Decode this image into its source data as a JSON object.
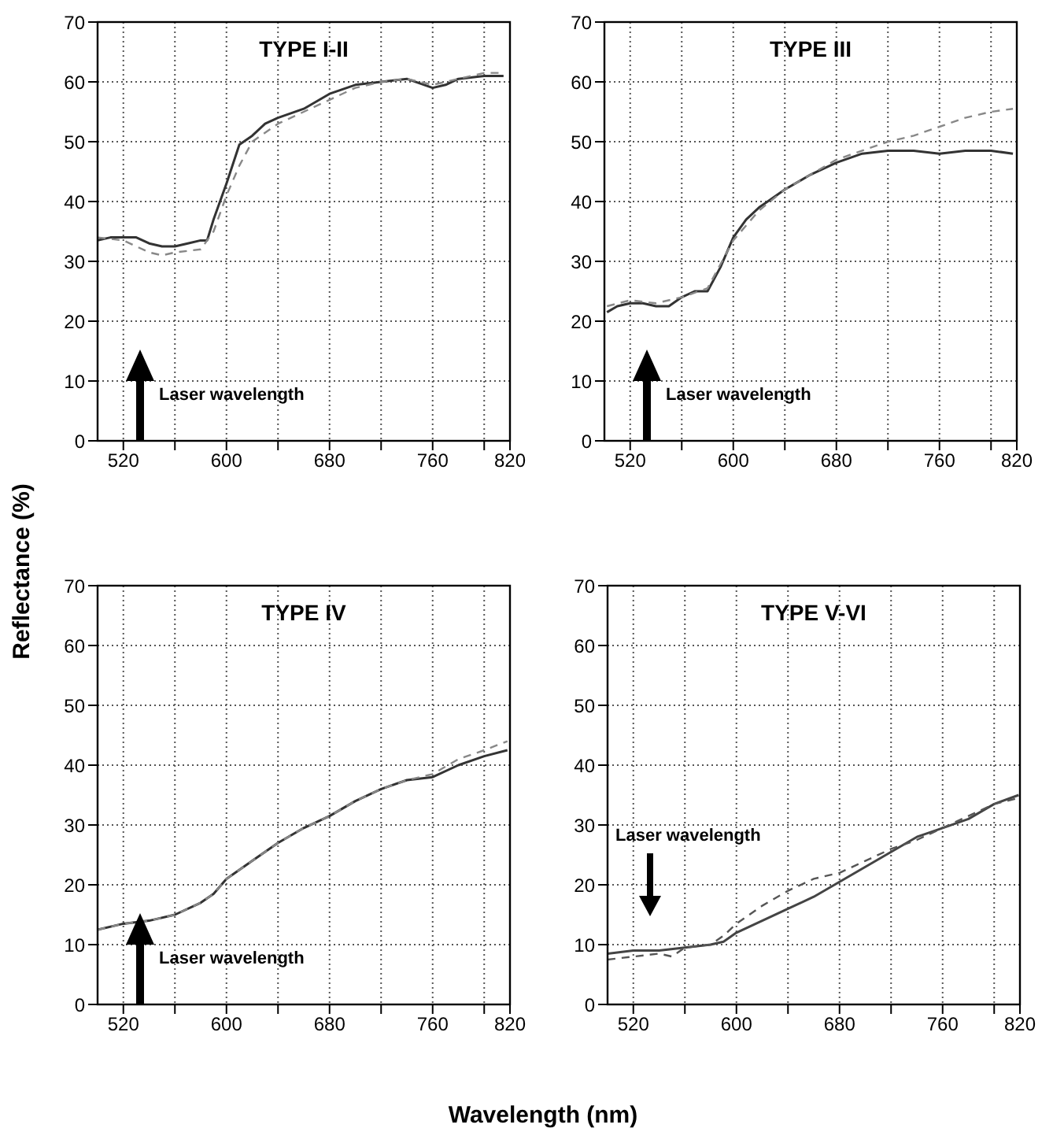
{
  "chart_data": [
    {
      "type": "line",
      "title": "TYPE I-II",
      "ylabel": "Reflectance (%)",
      "xlim": [
        500,
        820
      ],
      "ylim": [
        0,
        70
      ],
      "xticks": [
        520,
        {
          "value": 560,
          "label": null
        },
        600,
        {
          "value": 640,
          "label": null
        },
        680,
        {
          "value": 720,
          "label": null
        },
        760,
        {
          "value": 800,
          "label": null
        },
        820
      ],
      "yticks": [
        0,
        10,
        20,
        30,
        40,
        50,
        60,
        70
      ],
      "grid": true,
      "annotations": [
        "Laser wavelength"
      ],
      "series": [
        {
          "color": "#333333",
          "line_style": "solid",
          "x": [
            500,
            510,
            520,
            530,
            540,
            550,
            560,
            570,
            580,
            585,
            590,
            600,
            610,
            620,
            630,
            640,
            660,
            680,
            700,
            720,
            740,
            760,
            770,
            780,
            800,
            815
          ],
          "values": [
            33.5,
            34,
            34,
            34,
            33,
            32.5,
            32.5,
            33,
            33.5,
            33.5,
            37,
            43,
            49.5,
            51,
            53,
            54,
            55.5,
            58,
            59.5,
            60,
            60.5,
            59,
            59.5,
            60.5,
            61,
            61
          ]
        },
        {
          "color": "#888888",
          "line_style": "dashed",
          "x": [
            500,
            520,
            540,
            550,
            560,
            580,
            590,
            600,
            610,
            620,
            640,
            660,
            680,
            700,
            720,
            740,
            760,
            780,
            800,
            815
          ],
          "values": [
            34,
            33.5,
            31.5,
            31,
            31.5,
            32,
            35,
            41,
            46,
            50,
            53,
            55,
            57,
            59,
            60,
            60.5,
            59.5,
            60.5,
            61.5,
            61.5
          ]
        }
      ]
    },
    {
      "type": "line",
      "title": "TYPE III",
      "xlim": [
        500,
        820
      ],
      "ylim": [
        0,
        70
      ],
      "xticks": [
        520,
        {
          "value": 560,
          "label": null
        },
        600,
        {
          "value": 640,
          "label": null
        },
        680,
        {
          "value": 720,
          "label": null
        },
        760,
        {
          "value": 800,
          "label": null
        },
        820
      ],
      "yticks": [
        0,
        10,
        20,
        30,
        40,
        50,
        60,
        70
      ],
      "grid": true,
      "annotations": [
        "Laser wavelength"
      ],
      "series": [
        {
          "color": "#333333",
          "line_style": "solid",
          "x": [
            502,
            510,
            520,
            530,
            540,
            550,
            560,
            570,
            580,
            590,
            600,
            610,
            620,
            640,
            660,
            680,
            700,
            720,
            740,
            760,
            780,
            800,
            817
          ],
          "values": [
            21.5,
            22.5,
            23,
            23,
            22.5,
            22.5,
            24,
            25,
            25,
            29,
            34,
            37,
            39,
            42,
            44.5,
            46.5,
            48,
            48.5,
            48.5,
            48,
            48.5,
            48.5,
            48
          ]
        },
        {
          "color": "#888888",
          "line_style": "dashed",
          "x": [
            502,
            520,
            540,
            560,
            580,
            600,
            620,
            640,
            660,
            680,
            700,
            720,
            740,
            760,
            780,
            800,
            817
          ],
          "values": [
            22.5,
            23.5,
            23,
            24,
            25.5,
            33.5,
            38.5,
            42,
            44.5,
            47,
            48.5,
            50,
            51,
            52.5,
            54,
            55,
            55.5
          ]
        }
      ]
    },
    {
      "type": "line",
      "title": "TYPE IV",
      "xlim": [
        500,
        820
      ],
      "ylim": [
        0,
        70
      ],
      "xticks": [
        520,
        {
          "value": 560,
          "label": null
        },
        600,
        {
          "value": 640,
          "label": null
        },
        680,
        {
          "value": 720,
          "label": null
        },
        760,
        {
          "value": 800,
          "label": null
        },
        820
      ],
      "yticks": [
        0,
        10,
        20,
        30,
        40,
        50,
        60,
        70
      ],
      "grid": true,
      "annotations": [
        "Laser wavelength"
      ],
      "series": [
        {
          "color": "#333333",
          "line_style": "solid",
          "x": [
            500,
            520,
            540,
            560,
            580,
            590,
            600,
            610,
            620,
            640,
            660,
            680,
            700,
            720,
            740,
            760,
            780,
            800,
            818
          ],
          "values": [
            12.5,
            13.5,
            14,
            15,
            17,
            18.5,
            21,
            22.5,
            24,
            27,
            29.5,
            31.5,
            34,
            36,
            37.5,
            38,
            40,
            41.5,
            42.5
          ]
        },
        {
          "color": "#888888",
          "line_style": "dashed",
          "x": [
            500,
            520,
            540,
            560,
            580,
            590,
            600,
            610,
            620,
            640,
            660,
            680,
            700,
            720,
            740,
            760,
            780,
            800,
            818
          ],
          "values": [
            12.5,
            13.5,
            14,
            15,
            17,
            18.5,
            21,
            22.5,
            24,
            27,
            29.5,
            31.5,
            34,
            36,
            37.5,
            38.5,
            41,
            42.5,
            44
          ]
        }
      ]
    },
    {
      "type": "line",
      "title": "TYPE V-VI",
      "xlabel": "Wavelength (nm)",
      "xlim": [
        500,
        820
      ],
      "ylim": [
        0,
        70
      ],
      "xticks": [
        520,
        {
          "value": 560,
          "label": null
        },
        600,
        {
          "value": 640,
          "label": null
        },
        680,
        {
          "value": 720,
          "label": null
        },
        760,
        {
          "value": 800,
          "label": null
        },
        820
      ],
      "yticks": [
        0,
        10,
        20,
        30,
        40,
        50,
        60,
        70
      ],
      "grid": true,
      "annotations": [
        "Laser wavelength"
      ],
      "series": [
        {
          "color": "#444444",
          "line_style": "solid",
          "x": [
            500,
            520,
            540,
            560,
            580,
            590,
            600,
            620,
            640,
            660,
            680,
            700,
            720,
            740,
            760,
            780,
            800,
            819
          ],
          "values": [
            8.5,
            9,
            9,
            9.5,
            10,
            10.5,
            12,
            14,
            16,
            18,
            20.5,
            23,
            25.5,
            28,
            29.5,
            31,
            33.5,
            35
          ]
        },
        {
          "color": "#555555",
          "line_style": "dashed",
          "x": [
            500,
            520,
            540,
            550,
            560,
            580,
            590,
            600,
            620,
            640,
            660,
            680,
            700,
            720,
            740,
            760,
            780,
            800,
            819
          ],
          "values": [
            7.5,
            8,
            8.5,
            8,
            9.5,
            10,
            11.5,
            13.5,
            16.5,
            19,
            21,
            22,
            24,
            26,
            27.5,
            29.5,
            31.5,
            33.5,
            34.5
          ]
        }
      ]
    }
  ]
}
